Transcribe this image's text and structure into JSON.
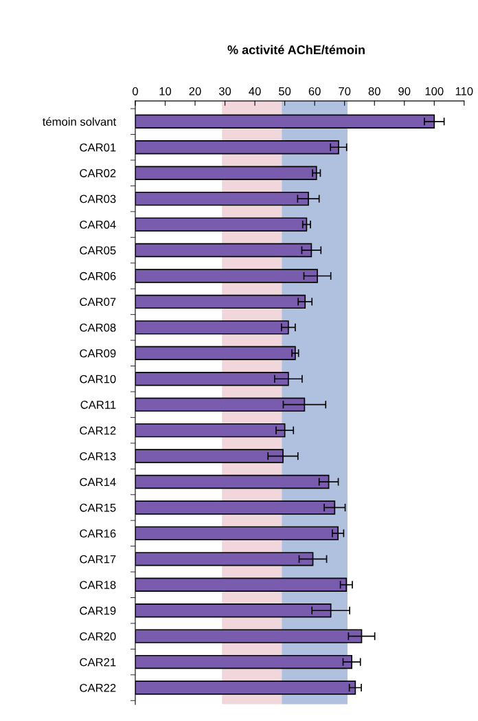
{
  "chart_data": {
    "type": "bar",
    "orientation": "horizontal",
    "title": "% activité AChE/témoin",
    "categories": [
      "témoin solvant",
      "CAR01",
      "CAR02",
      "CAR03",
      "CAR04",
      "CAR05",
      "CAR06",
      "CAR07",
      "CAR08",
      "CAR09",
      "CAR10",
      "CAR11",
      "CAR12",
      "CAR13",
      "CAR14",
      "CAR15",
      "CAR16",
      "CAR17",
      "CAR18",
      "CAR19",
      "CAR20",
      "CAR21",
      "CAR22"
    ],
    "values": [
      100,
      68,
      60.6,
      57.9,
      57.3,
      58.9,
      60.9,
      56.8,
      51.2,
      53.5,
      51.2,
      56.6,
      50,
      49.4,
      64.7,
      66.7,
      67.8,
      59.4,
      70.6,
      65.4,
      75.7,
      72.4,
      73.6
    ],
    "errors": [
      3.3,
      2.7,
      1.3,
      3.6,
      1.3,
      3.2,
      4.5,
      2.3,
      2.3,
      1.1,
      4.6,
      7.1,
      2.9,
      5,
      3.2,
      3.5,
      1.9,
      4.6,
      2,
      6.3,
      4.4,
      2.9,
      2
    ],
    "color": "#7a5cae",
    "xlim": [
      0,
      110
    ],
    "xticks": [
      0,
      10,
      20,
      30,
      40,
      50,
      60,
      70,
      80,
      90,
      100,
      110
    ],
    "bands": [
      {
        "axis": "x",
        "from": 29,
        "to": 49,
        "color": "#efd3d8"
      },
      {
        "axis": "x",
        "from": 49,
        "to": 71,
        "color": "#a7badb"
      }
    ],
    "grid": false,
    "legend": false
  }
}
